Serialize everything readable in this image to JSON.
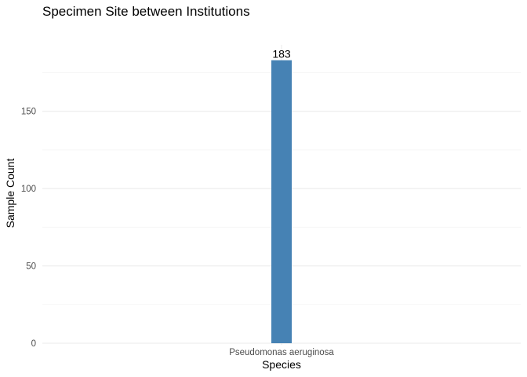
{
  "chart_data": {
    "type": "bar",
    "title": "Specimen Site between Institutions",
    "xlabel": "Species",
    "ylabel": "Sample Count",
    "categories": [
      "Pseudomonas aeruginosa"
    ],
    "values": [
      183
    ],
    "value_labels": [
      "183"
    ],
    "ylim": [
      0,
      193
    ],
    "yticks": [
      0,
      50,
      100,
      150
    ],
    "ytick_labels": [
      "0",
      "50",
      "100",
      "150"
    ],
    "grid": true,
    "legend": "none",
    "colors": {
      "bar": "#4682B4",
      "grid_major": "#ebebeb",
      "grid_minor": "#f5f5f5",
      "background": "#ffffff"
    }
  }
}
